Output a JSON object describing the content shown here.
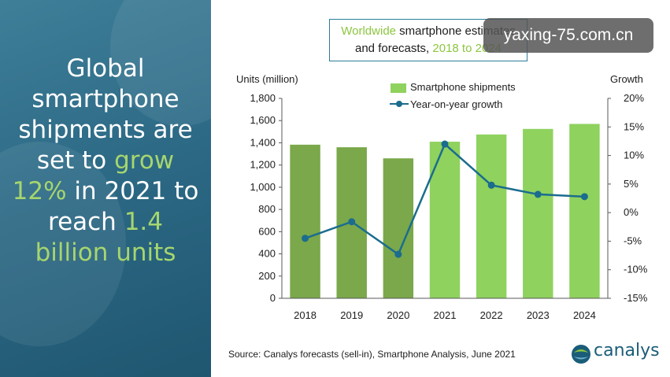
{
  "headline": {
    "line1": "Global",
    "line2": "smartphone",
    "line3": "shipments are",
    "line4_pre": "set to ",
    "line4_hl": "grow",
    "line5_hl": "12%",
    "line5_post": " in 2021 to",
    "line6_pre": "reach ",
    "line6_hl": "1.4",
    "line7_hl": "billion units"
  },
  "title": {
    "part1_light": "Worldwide",
    "part1_rest": " smartphone estimates",
    "part2_pre": "and forecasts, ",
    "part2_light": "2018 to 2024"
  },
  "watermark": "yaxing-75.com.cn",
  "source": "Source: Canalys forecasts (sell-in), Smartphone Analysis, June 2021",
  "logo_text": "canalys",
  "colors": {
    "bar_dark": "#7aa84a",
    "bar_light": "#8fd25e",
    "line": "#1b6c8e",
    "accent_text": "#a6d66e",
    "brand": "#1a5d78"
  },
  "chart_data": {
    "type": "bar",
    "categories": [
      "2018",
      "2019",
      "2020",
      "2021",
      "2022",
      "2023",
      "2024"
    ],
    "series": [
      {
        "name": "Smartphone shipments",
        "type": "bar",
        "axis": "left",
        "values": [
          1383,
          1360,
          1260,
          1410,
          1475,
          1525,
          1570
        ]
      },
      {
        "name": "Year-on-year growth",
        "type": "line",
        "axis": "right",
        "values": [
          -4.5,
          -1.6,
          -7.3,
          12,
          4.8,
          3.2,
          2.8
        ]
      }
    ],
    "ylabel": "Units (million)",
    "ylabel_right": "Growth",
    "ylim": [
      0,
      1800
    ],
    "ylim_right": [
      -15,
      20
    ],
    "yticks": [
      "0",
      "200",
      "400",
      "600",
      "800",
      "1,000",
      "1,200",
      "1,400",
      "1,600",
      "1,800"
    ],
    "yticks_right": [
      "-15%",
      "-10%",
      "-5%",
      "0%",
      "5%",
      "10%",
      "15%",
      "20%"
    ],
    "historical_count": 3,
    "grid": false,
    "legend": "top"
  }
}
